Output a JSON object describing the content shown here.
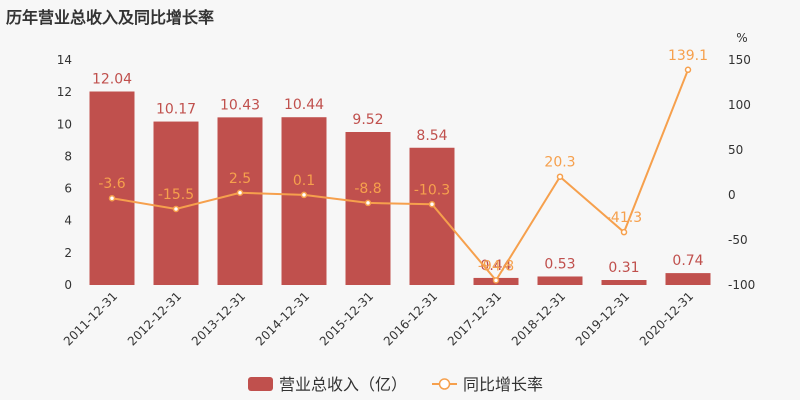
{
  "title": "历年营业总收入及同比增长率",
  "chart_data": {
    "type": "bar",
    "categories": [
      "2011-12-31",
      "2012-12-31",
      "2013-12-31",
      "2014-12-31",
      "2015-12-31",
      "2016-12-31",
      "2017-12-31",
      "2018-12-31",
      "2019-12-31",
      "2020-12-31"
    ],
    "series": [
      {
        "name": "营业总收入（亿）",
        "type": "bar",
        "axis": "left",
        "values": [
          12.04,
          10.17,
          10.43,
          10.44,
          9.52,
          8.54,
          0.44,
          0.53,
          0.31,
          0.74
        ],
        "labels": [
          "12.04",
          "10.17",
          "10.43",
          "10.44",
          "9.52",
          "8.54",
          "0.44",
          "0.53",
          "0.31",
          "0.74"
        ],
        "color": "#c0504d"
      },
      {
        "name": "同比增长率",
        "type": "line",
        "axis": "right",
        "values": [
          -3.6,
          -15.5,
          2.5,
          0.1,
          -8.8,
          -10.3,
          -94.8,
          20.3,
          -41.3,
          139.1
        ],
        "labels": [
          "-3.6",
          "-15.5",
          "2.5",
          "0.1",
          "-8.8",
          "-10.3",
          "-94.8",
          "20.3",
          "-41.3",
          "139.1"
        ],
        "color": "#f6a04d"
      }
    ],
    "y_left": {
      "min": 0,
      "max": 14,
      "ticks": [
        "0",
        "2",
        "4",
        "6",
        "8",
        "10",
        "12",
        "14"
      ]
    },
    "y_right": {
      "min": -100,
      "max": 150,
      "ticks": [
        "-100",
        "-50",
        "0",
        "50",
        "100",
        "150"
      ],
      "unit": "%"
    },
    "legend_position": "bottom-center"
  }
}
